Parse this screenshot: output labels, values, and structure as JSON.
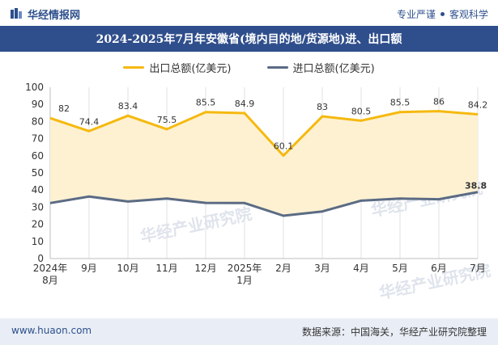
{
  "header": {
    "brand": "华经情报网",
    "tags": [
      "专业严谨",
      "客观科学"
    ]
  },
  "title": "2024-2025年7月年安徽省(境内目的地/货源地)进、出口额",
  "legend": {
    "export": "出口总额(亿美元)",
    "import": "进口总额(亿美元)"
  },
  "watermark": "华经产业研究院",
  "watermark_url": "www.huaon.com",
  "footer": {
    "left": "www.huaon.com",
    "right": "数据来源：中国海关，华经产业研究院整理"
  },
  "colors": {
    "export": "#f5b90f",
    "import": "#5b6b84",
    "fill": "#fdf1d2",
    "brand": "#2f4e8c"
  },
  "chart_data": {
    "type": "line",
    "categories": [
      "2024年\n8月",
      "9月",
      "10月",
      "11月",
      "12月",
      "2025年\n1月",
      "2月",
      "3月",
      "4月",
      "5月",
      "6月",
      "7月"
    ],
    "series": [
      {
        "name": "出口总额(亿美元)",
        "values": [
          82,
          74.4,
          83.4,
          75.5,
          85.5,
          84.9,
          60.1,
          83,
          80.5,
          85.5,
          86,
          84.2
        ],
        "labels_shown": true
      },
      {
        "name": "进口总额(亿美元)",
        "values": [
          32.4,
          36.2,
          33.3,
          35.0,
          32.5,
          32.4,
          25.0,
          27.5,
          33.8,
          35.0,
          34.6,
          38.8
        ],
        "labels_shown": [
          false,
          false,
          false,
          false,
          false,
          false,
          false,
          false,
          false,
          false,
          false,
          true
        ]
      }
    ],
    "data_labels": {
      "export": [
        "82",
        "74.4",
        "83.4",
        "75.5",
        "85.5",
        "84.9",
        "60.1",
        "83",
        "80.5",
        "85.5",
        "86",
        "84.2"
      ],
      "import_last": "38.8"
    },
    "ylim": [
      0,
      100
    ],
    "yticks": [
      0,
      10,
      20,
      30,
      40,
      50,
      60,
      70,
      80,
      90,
      100
    ],
    "grid": "vertical",
    "legend_position": "top"
  }
}
